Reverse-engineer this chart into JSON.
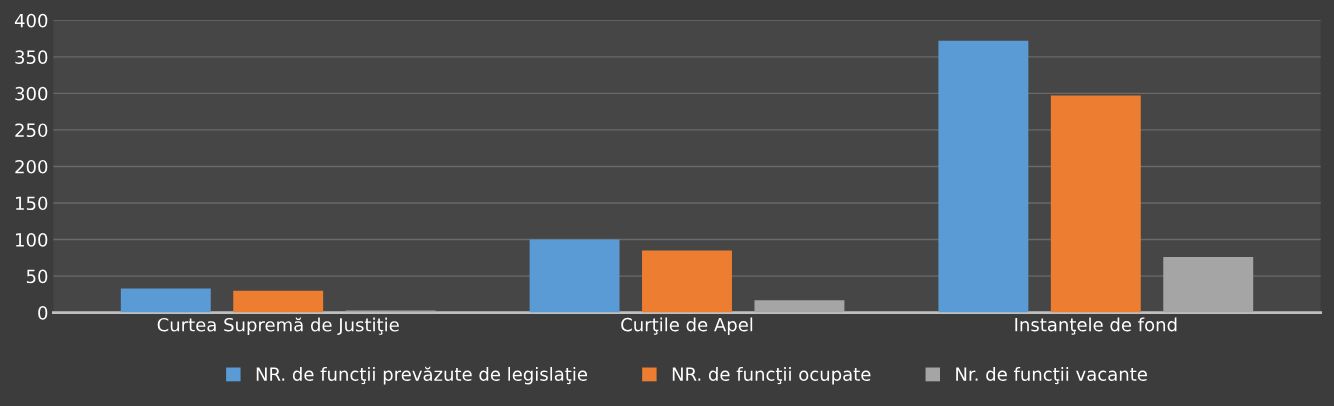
{
  "chart_data": {
    "type": "bar",
    "categories": [
      "Curtea Supremă de Justiţie",
      "Curţile de Apel",
      "Instanţele de fond"
    ],
    "series": [
      {
        "name": "NR. de funcţii prevăzute de legislaţie",
        "color": "#5b9bd5",
        "values": [
          33,
          100,
          372
        ]
      },
      {
        "name": "NR. de funcţii ocupate",
        "color": "#ed7d31",
        "values": [
          30,
          85,
          297
        ]
      },
      {
        "name": "Nr. de funcţii vacante",
        "color": "#a5a5a5",
        "values": [
          3,
          17,
          76
        ]
      }
    ],
    "ylim": [
      0,
      400
    ],
    "yticks": [
      0,
      50,
      100,
      150,
      200,
      250,
      300,
      350,
      400
    ],
    "grid": "y",
    "legend": "bottom"
  }
}
